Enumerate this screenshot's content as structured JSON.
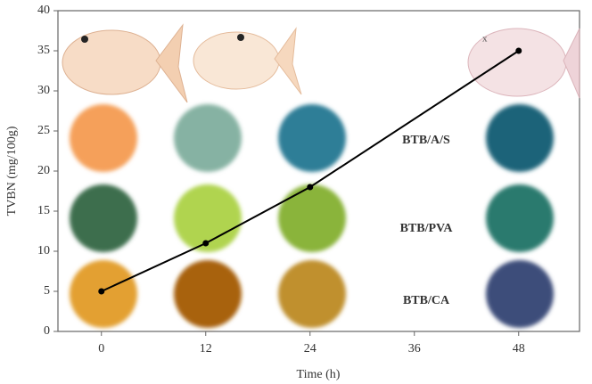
{
  "chart_data": {
    "type": "line",
    "x_label": "Time (h)",
    "y_label": "TVBN (mg/100g)",
    "x": [
      0,
      12,
      24,
      48
    ],
    "series": [
      {
        "color": "#000000",
        "values": [
          5,
          11,
          18,
          35
        ]
      }
    ],
    "xlim": [
      -5,
      55
    ],
    "xticks": [
      0,
      12,
      24,
      36,
      48
    ],
    "ylim": [
      0,
      40
    ],
    "yticks": [
      0,
      5,
      10,
      15,
      20,
      25,
      30,
      35,
      40
    ],
    "annotations": [
      "BTB/A/S",
      "BTB/PVA",
      "BTB/CA"
    ]
  }
}
